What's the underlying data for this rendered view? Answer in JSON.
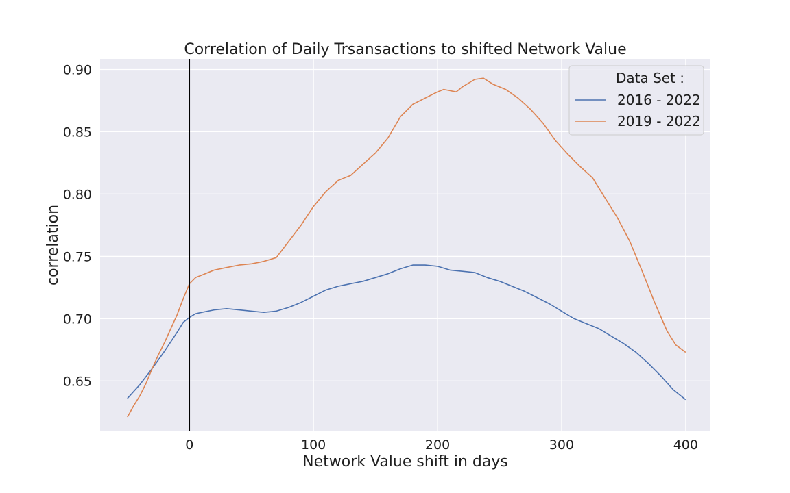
{
  "chart_data": {
    "type": "line",
    "title": "Correlation of Daily Trsansactions to shifted Network Value",
    "xlabel": "Network Value shift in days",
    "ylabel": "correlation",
    "xlim": [
      -72,
      420
    ],
    "ylim": [
      0.6095,
      0.9085
    ],
    "xticks": [
      0,
      100,
      200,
      300,
      400
    ],
    "xtick_labels": [
      "0",
      "100",
      "200",
      "300",
      "400"
    ],
    "yticks": [
      0.65,
      0.7,
      0.75,
      0.8,
      0.85,
      0.9
    ],
    "ytick_labels": [
      "0.65",
      "0.70",
      "0.75",
      "0.80",
      "0.85",
      "0.90"
    ],
    "grid": true,
    "background": "#eaeaf2",
    "vline": {
      "x": 0,
      "color": "#000000"
    },
    "legend": {
      "title": "Data Set :",
      "position": "upper right"
    },
    "series": [
      {
        "name": "2016 - 2022",
        "color": "#4c72b0",
        "x": [
          -50,
          -40,
          -30,
          -20,
          -10,
          -5,
          0,
          5,
          10,
          20,
          30,
          40,
          50,
          60,
          70,
          80,
          90,
          100,
          110,
          120,
          130,
          140,
          150,
          160,
          170,
          180,
          190,
          200,
          210,
          220,
          230,
          240,
          250,
          260,
          270,
          280,
          290,
          300,
          310,
          320,
          330,
          340,
          350,
          360,
          370,
          380,
          390,
          400
        ],
        "y": [
          0.636,
          0.647,
          0.66,
          0.674,
          0.689,
          0.697,
          0.701,
          0.704,
          0.705,
          0.707,
          0.708,
          0.707,
          0.706,
          0.705,
          0.706,
          0.709,
          0.713,
          0.718,
          0.723,
          0.726,
          0.728,
          0.73,
          0.733,
          0.736,
          0.74,
          0.743,
          0.743,
          0.742,
          0.739,
          0.738,
          0.737,
          0.733,
          0.73,
          0.726,
          0.722,
          0.717,
          0.712,
          0.706,
          0.7,
          0.696,
          0.692,
          0.686,
          0.68,
          0.673,
          0.664,
          0.654,
          0.643,
          0.635
        ]
      },
      {
        "name": "2019 - 2022",
        "color": "#dd8452",
        "x": [
          -50,
          -45,
          -40,
          -35,
          -30,
          -25,
          -20,
          -15,
          -10,
          -5,
          0,
          5,
          10,
          20,
          30,
          40,
          50,
          60,
          70,
          80,
          90,
          100,
          110,
          120,
          130,
          140,
          150,
          160,
          170,
          180,
          190,
          200,
          205,
          210,
          215,
          220,
          230,
          237,
          245,
          255,
          265,
          275,
          285,
          295,
          305,
          315,
          325,
          335,
          345,
          355,
          365,
          375,
          385,
          392,
          400
        ],
        "y": [
          0.621,
          0.63,
          0.638,
          0.648,
          0.66,
          0.671,
          0.681,
          0.692,
          0.703,
          0.716,
          0.728,
          0.733,
          0.735,
          0.739,
          0.741,
          0.743,
          0.744,
          0.746,
          0.749,
          0.762,
          0.775,
          0.79,
          0.802,
          0.811,
          0.815,
          0.824,
          0.833,
          0.845,
          0.862,
          0.872,
          0.877,
          0.882,
          0.884,
          0.883,
          0.882,
          0.886,
          0.892,
          0.893,
          0.888,
          0.884,
          0.877,
          0.868,
          0.857,
          0.843,
          0.832,
          0.822,
          0.813,
          0.797,
          0.781,
          0.762,
          0.738,
          0.713,
          0.69,
          0.679,
          0.673
        ]
      }
    ]
  }
}
